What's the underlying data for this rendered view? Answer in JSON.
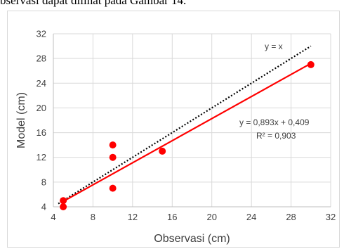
{
  "document": {
    "caption_fragment": "bservasi dapat dilihat pada Gambar 14."
  },
  "chart_data": {
    "type": "scatter",
    "xlabel": "Observasi (cm)",
    "ylabel": "Model (cm)",
    "xlim": [
      4,
      32
    ],
    "ylim": [
      4,
      32
    ],
    "x_ticks": [
      4,
      8,
      12,
      16,
      20,
      24,
      28,
      32
    ],
    "y_ticks": [
      4,
      8,
      12,
      16,
      20,
      24,
      28,
      32
    ],
    "grid": true,
    "series": [
      {
        "type": "scatter",
        "color": "#ff0000",
        "points": [
          {
            "x": 5,
            "y": 4
          },
          {
            "x": 5,
            "y": 5
          },
          {
            "x": 10,
            "y": 7
          },
          {
            "x": 10,
            "y": 12
          },
          {
            "x": 10,
            "y": 14
          },
          {
            "x": 15,
            "y": 13
          },
          {
            "x": 30,
            "y": 27
          }
        ]
      }
    ],
    "trendline": {
      "color": "#ff0000",
      "slope": 0.893,
      "intercept": 0.409,
      "x_range": [
        5,
        30
      ],
      "equation": "y = 0,893x + 0,409",
      "r2": "R² = 0,903"
    },
    "reference_line": {
      "label": "y = x",
      "color": "#000000",
      "style": "dotted",
      "x_range": [
        4.5,
        30
      ]
    }
  }
}
